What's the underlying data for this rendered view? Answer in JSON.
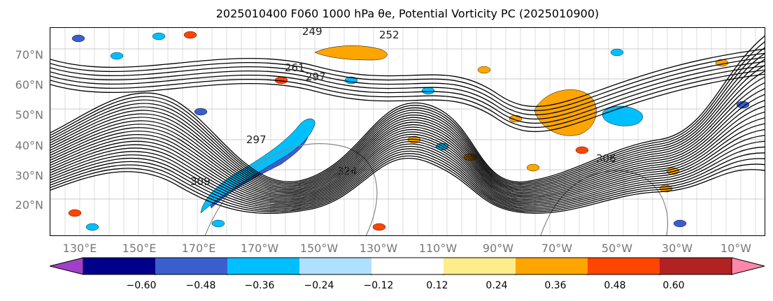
{
  "title": "2025010400 F060 1000 hPa θe, Potential Vorticity PC (2025010900)",
  "colors": {
    "background": "#ffffff",
    "contour_line": "#000000",
    "axis_label": "#777777",
    "land_outline": "#888888"
  },
  "axes": {
    "lat_labels": [
      "70°N",
      "60°N",
      "50°N",
      "40°N",
      "30°N",
      "20°N"
    ],
    "lon_labels": [
      "130°E",
      "150°E",
      "170°E",
      "170°W",
      "150°W",
      "130°W",
      "110°W",
      "90°W",
      "70°W",
      "50°W",
      "30°W",
      "10°W"
    ]
  },
  "contour_labels": [
    "249",
    "252",
    "297",
    "297",
    "309",
    "324",
    "306",
    "261"
  ],
  "colorbar": {
    "tick_labels": [
      "−0.60",
      "−0.48",
      "−0.36",
      "−0.24",
      "−0.12",
      "0.12",
      "0.24",
      "0.36",
      "0.48",
      "0.60"
    ],
    "colors": [
      "#a040c8",
      "#00008b",
      "#3a5fcd",
      "#00bfff",
      "#b0e0ff",
      "#ffffff",
      "#ffec8b",
      "#ffa500",
      "#ff4500",
      "#b22222",
      "#ff88aa"
    ]
  },
  "shaded_regions": [
    {
      "name": "neg-pv-central-pacific",
      "color": "#3a5fcd"
    },
    {
      "name": "neg-pv-central-pacific-outer",
      "color": "#00bfff"
    },
    {
      "name": "pos-pv-north-atlantic",
      "color": "#ff4500"
    },
    {
      "name": "pos-pv-north-atlantic-outer",
      "color": "#ffa500"
    },
    {
      "name": "pos-pv-arctic",
      "color": "#ffa500"
    },
    {
      "name": "neg-pv-atlantic",
      "color": "#00bfff"
    }
  ]
}
